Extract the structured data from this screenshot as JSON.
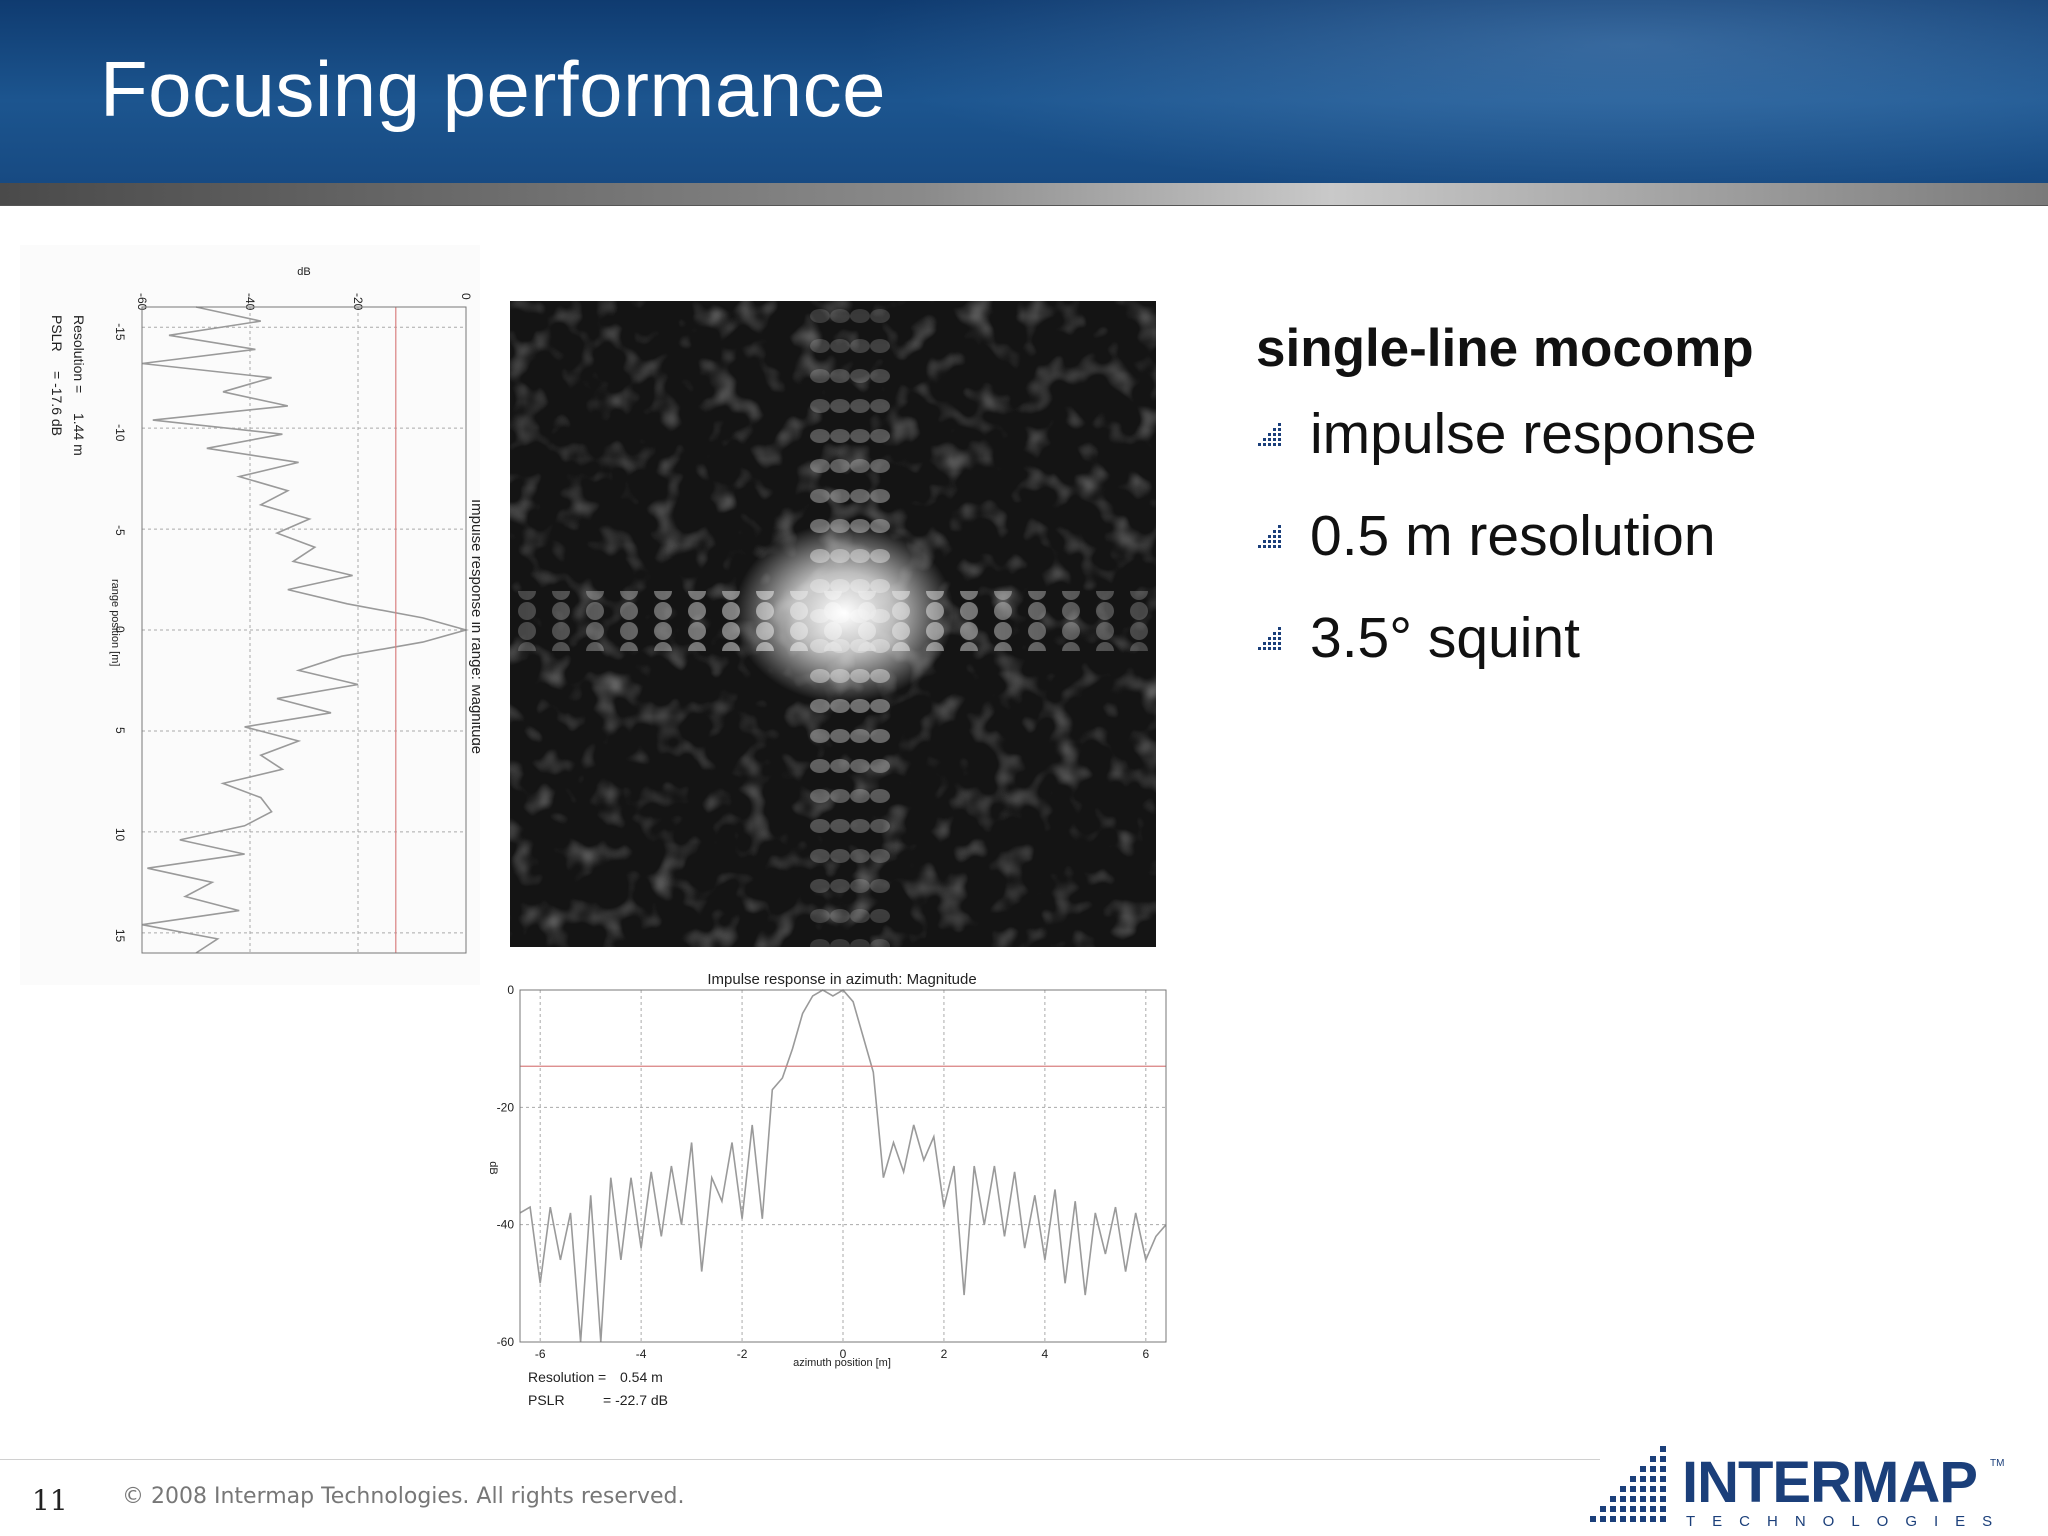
{
  "slide": {
    "title": "Focusing performance",
    "number": "11",
    "copyright": "© 2008 Intermap Technologies. All rights reserved."
  },
  "bullets": {
    "heading": "single-line mocomp",
    "items": [
      "impulse response",
      "0.5 m resolution",
      "3.5° squint"
    ]
  },
  "logo": {
    "name": "INTERMAP",
    "tm": "TM",
    "sub": "TECHNOLOGIES"
  },
  "chart_data": [
    {
      "type": "line",
      "title": "Impulse response in range: Magnitude",
      "xlabel": "range position [m]",
      "ylabel": "dB",
      "x_ticks": [
        "-15",
        "-10",
        "-5",
        "0",
        "5",
        "10",
        "15"
      ],
      "y_ticks": [
        "-60",
        "-40",
        "-20",
        "0"
      ],
      "xlim": [
        -16,
        16
      ],
      "ylim": [
        -60,
        0
      ],
      "orientation": "rotated-90",
      "threshold_db": -13,
      "grid": true,
      "annotations": [
        {
          "label": "Resolution =",
          "value": "1.44 m"
        },
        {
          "label": "PSLR",
          "value": "= -17.6 dB"
        }
      ],
      "series": [
        {
          "x": [
            -16,
            -15.3,
            -14.6,
            -13.9,
            -13.2,
            -12.5,
            -11.8,
            -11.1,
            -10.4,
            -9.7,
            -9.0,
            -8.3,
            -7.6,
            -6.9,
            -6.2,
            -5.5,
            -4.8,
            -4.1,
            -3.4,
            -2.7,
            -2.0,
            -1.3,
            -0.6,
            0,
            0.6,
            1.3,
            2.0,
            2.7,
            3.4,
            4.1,
            4.8,
            5.5,
            6.2,
            6.9,
            7.6,
            8.3,
            9.0,
            9.7,
            10.4,
            11.1,
            11.8,
            12.5,
            13.2,
            13.9,
            14.6,
            15.3,
            16
          ],
          "y": [
            -50,
            -38,
            -55,
            -39,
            -60,
            -36,
            -45,
            -33,
            -58,
            -34,
            -48,
            -31,
            -42,
            -33,
            -38,
            -29,
            -35,
            -28,
            -32,
            -21,
            -33,
            -22,
            -8,
            0,
            -8,
            -23,
            -31,
            -20,
            -35,
            -25,
            -41,
            -31,
            -38,
            -34,
            -45,
            -38,
            -36,
            -41,
            -53,
            -41,
            -59,
            -47,
            -52,
            -42,
            -60,
            -46,
            -50
          ]
        }
      ]
    },
    {
      "type": "line",
      "title": "Impulse response in azimuth: Magnitude",
      "xlabel": "azimuth position [m]",
      "ylabel": "dB",
      "x_ticks": [
        "-6",
        "-4",
        "-2",
        "0",
        "2",
        "4",
        "6"
      ],
      "y_ticks": [
        "0",
        "-20",
        "-40",
        "-60"
      ],
      "xlim": [
        -6.4,
        6.4
      ],
      "ylim": [
        -60,
        0
      ],
      "threshold_db": -13,
      "grid": true,
      "annotations": [
        {
          "label": "Resolution =",
          "value": "0.54 m"
        },
        {
          "label": "PSLR",
          "value": "= -22.7 dB"
        }
      ],
      "series": [
        {
          "x": [
            -6.4,
            -6.2,
            -6.0,
            -5.8,
            -5.6,
            -5.4,
            -5.2,
            -5.0,
            -4.8,
            -4.6,
            -4.4,
            -4.2,
            -4.0,
            -3.8,
            -3.6,
            -3.4,
            -3.2,
            -3.0,
            -2.8,
            -2.6,
            -2.4,
            -2.2,
            -2.0,
            -1.8,
            -1.6,
            -1.4,
            -1.2,
            -1.0,
            -0.8,
            -0.6,
            -0.4,
            -0.2,
            0,
            0.2,
            0.4,
            0.6,
            0.8,
            1.0,
            1.2,
            1.4,
            1.6,
            1.8,
            2.0,
            2.2,
            2.4,
            2.6,
            2.8,
            3.0,
            3.2,
            3.4,
            3.6,
            3.8,
            4.0,
            4.2,
            4.4,
            4.6,
            4.8,
            5.0,
            5.2,
            5.4,
            5.6,
            5.8,
            6.0,
            6.2,
            6.4
          ],
          "y": [
            -38,
            -37,
            -50,
            -37,
            -46,
            -38,
            -60,
            -35,
            -60,
            -32,
            -46,
            -32,
            -44,
            -31,
            -42,
            -30,
            -40,
            -26,
            -48,
            -32,
            -36,
            -26,
            -39,
            -23,
            -39,
            -17,
            -15,
            -10,
            -4,
            -1,
            0,
            -1,
            0,
            -2,
            -8,
            -14,
            -32,
            -26,
            -31,
            -23,
            -29,
            -25,
            -37,
            -30,
            -52,
            -30,
            -40,
            -30,
            -42,
            -31,
            -44,
            -35,
            -46,
            -34,
            -50,
            -36,
            -52,
            -38,
            -45,
            -37,
            -48,
            -38,
            -46,
            -42,
            -40
          ]
        }
      ]
    }
  ]
}
